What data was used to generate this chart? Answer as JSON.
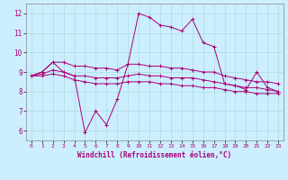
{
  "title": "",
  "xlabel": "Windchill (Refroidissement éolien,°C)",
  "ylabel": "",
  "bg_color": "#cceeff",
  "line_color": "#aa0077",
  "grid_color": "#aadddd",
  "xlim": [
    -0.5,
    23.5
  ],
  "ylim": [
    5.5,
    12.5
  ],
  "yticks": [
    6,
    7,
    8,
    9,
    10,
    11,
    12
  ],
  "xticks": [
    0,
    1,
    2,
    3,
    4,
    5,
    6,
    7,
    8,
    9,
    10,
    11,
    12,
    13,
    14,
    15,
    16,
    17,
    18,
    19,
    20,
    21,
    22,
    23
  ],
  "series_main": [
    8.8,
    9.0,
    9.5,
    9.0,
    8.8,
    5.9,
    7.0,
    6.3,
    7.6,
    9.4,
    12.0,
    11.8,
    11.4,
    11.3,
    11.1,
    11.7,
    10.5,
    10.3,
    8.4,
    8.3,
    8.1,
    9.0,
    8.2,
    8.0
  ],
  "series_upper": [
    8.8,
    9.0,
    9.5,
    9.5,
    9.3,
    9.3,
    9.2,
    9.2,
    9.1,
    9.4,
    9.4,
    9.3,
    9.3,
    9.2,
    9.2,
    9.1,
    9.0,
    9.0,
    8.8,
    8.7,
    8.6,
    8.5,
    8.5,
    8.4
  ],
  "series_mid": [
    8.8,
    8.9,
    9.1,
    9.0,
    8.8,
    8.8,
    8.7,
    8.7,
    8.7,
    8.8,
    8.9,
    8.8,
    8.8,
    8.7,
    8.7,
    8.7,
    8.6,
    8.5,
    8.4,
    8.3,
    8.2,
    8.2,
    8.1,
    8.0
  ],
  "series_lower": [
    8.8,
    8.8,
    8.9,
    8.8,
    8.6,
    8.5,
    8.4,
    8.4,
    8.4,
    8.5,
    8.5,
    8.5,
    8.4,
    8.4,
    8.3,
    8.3,
    8.2,
    8.2,
    8.1,
    8.0,
    8.0,
    7.9,
    7.9,
    7.9
  ],
  "tick_fontsize_x": 4.5,
  "tick_fontsize_y": 5.5,
  "xlabel_fontsize": 5.5
}
